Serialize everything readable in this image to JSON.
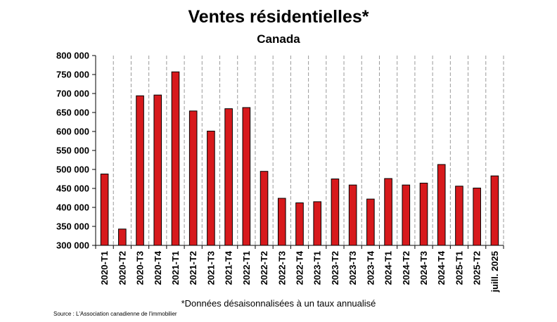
{
  "chart_data": {
    "type": "bar",
    "title": "Ventes résidentielles*",
    "subtitle": "Canada",
    "categories": [
      "2020-T1",
      "2020-T2",
      "2020-T3",
      "2020-T4",
      "2021-T1",
      "2021-T2",
      "2021-T3",
      "2021-T4",
      "2022-T1",
      "2022-T2",
      "2022-T3",
      "2022-T4",
      "2023-T1",
      "2023-T2",
      "2023-T3",
      "2023-T4",
      "2024-T1",
      "2024-T2",
      "2024-T3",
      "2024-T4",
      "2025-T1",
      "2025-T2",
      "juill. 2025"
    ],
    "values": [
      488000,
      343000,
      694000,
      696000,
      757000,
      654000,
      601000,
      660000,
      663000,
      495000,
      424000,
      412000,
      415000,
      475000,
      459000,
      422000,
      476000,
      459000,
      464000,
      513000,
      456000,
      451000,
      483000
    ],
    "ylim": [
      300000,
      800000
    ],
    "yticks": [
      300000,
      350000,
      400000,
      450000,
      500000,
      550000,
      600000,
      650000,
      700000,
      750000,
      800000
    ],
    "ytick_labels": [
      "300 000",
      "350 000",
      "400 000",
      "450 000",
      "500 000",
      "550 000",
      "600 000",
      "650 000",
      "700 000",
      "750 000",
      "800 000"
    ],
    "xlabel": "",
    "ylabel": "",
    "grid": "vertical dashed",
    "bar_color": "#d7191c",
    "note": "*Données désaisonnalisées à un taux annualisé",
    "source": "Source : L'Association canadienne de l'immobilier"
  }
}
